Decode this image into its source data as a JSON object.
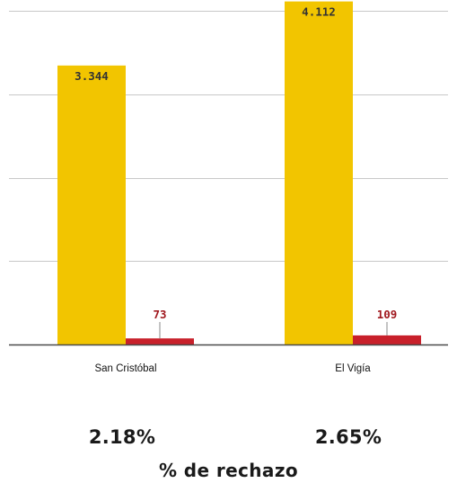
{
  "chart_data": {
    "type": "bar",
    "categories": [
      "San Cristóbal",
      "El Vigía"
    ],
    "series": [
      {
        "values": [
          3344,
          4112
        ],
        "value_labels": [
          "3.344",
          "4.112"
        ],
        "color": "#f2c500"
      },
      {
        "values": [
          73,
          109
        ],
        "value_labels": [
          "73",
          "109"
        ],
        "color": "#c8202a"
      }
    ],
    "ylim": [
      0,
      4000
    ],
    "yticks": [
      0,
      1000,
      2000,
      3000,
      4000
    ],
    "grid": true,
    "label_colors": {
      "series_0": "#333333",
      "series_1": "#a1191f"
    }
  },
  "rejection_rates": [
    "2.18%",
    "2.65%"
  ],
  "footer": {
    "title": "% de rechazo"
  }
}
